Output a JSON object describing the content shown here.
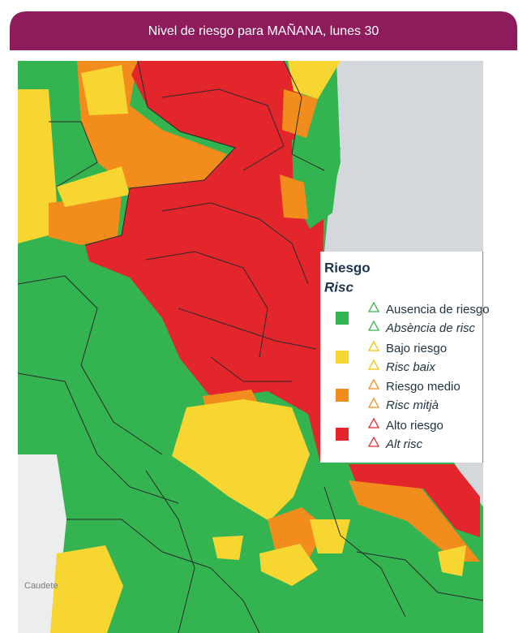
{
  "header": {
    "title": "Nivel de riesgo para MAÑANA, lunes 30"
  },
  "legend": {
    "title": "Riesgo",
    "subtitle": "Risc",
    "items": [
      {
        "label": "Ausencia de riesgo",
        "label_ca": "Absència de risc"
      },
      {
        "label": "Bajo riesgo",
        "label_ca": "Risc baix"
      },
      {
        "label": "Riesgo medio",
        "label_ca": "Risc mitjà"
      },
      {
        "label": "Alto riesgo",
        "label_ca": "Alt risc"
      }
    ]
  },
  "map": {
    "labels": [
      "Caudete"
    ]
  }
}
